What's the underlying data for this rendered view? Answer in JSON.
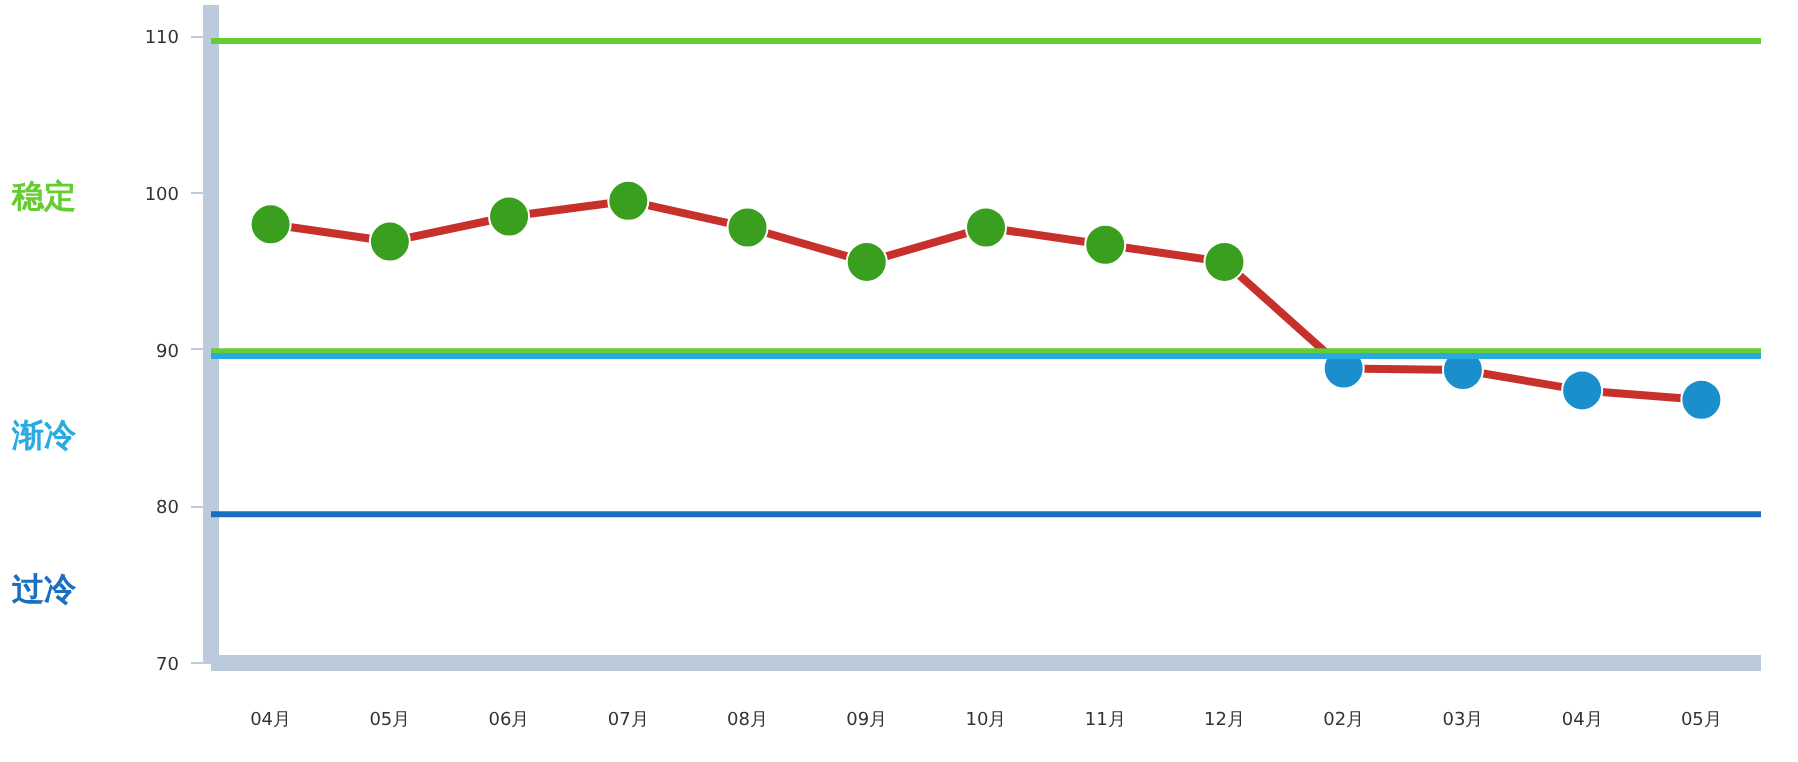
{
  "chart_data": {
    "type": "line",
    "categories": [
      "04月",
      "05月",
      "06月",
      "07月",
      "08月",
      "09月",
      "10月",
      "11月",
      "12月",
      "02月",
      "03月",
      "04月",
      "05月"
    ],
    "series": [
      {
        "color": "#c8302c",
        "values": [
          98.0,
          96.9,
          98.5,
          99.5,
          97.8,
          95.6,
          97.8,
          96.7,
          95.6,
          88.8,
          88.7,
          87.4,
          86.8
        ],
        "colors": [
          "#3a9f1f",
          "#3a9f1f",
          "#3a9f1f",
          "#3a9f1f",
          "#3a9f1f",
          "#3a9f1f",
          "#3a9f1f",
          "#3a9f1f",
          "#3a9f1f",
          "#1a8fcc",
          "#1a8fcc",
          "#1a8fcc",
          "#1a8fcc"
        ]
      }
    ],
    "ylim": [
      70,
      112
    ],
    "yticks": [
      70,
      80,
      90,
      100,
      110
    ],
    "ref_lines": [
      {
        "axis": "y",
        "value": 109.7,
        "color": "#66cc33"
      },
      {
        "axis": "y",
        "value": 89.9,
        "color": "#66cc33"
      },
      {
        "axis": "y",
        "value": 89.6,
        "color": "#29abe2"
      },
      {
        "axis": "y",
        "value": 79.5,
        "color": "#1a6fc0"
      }
    ],
    "annotations": [
      "稳定",
      "渐冷",
      "过冷"
    ],
    "marker": "circle",
    "line_style": "solid",
    "grid": false
  }
}
